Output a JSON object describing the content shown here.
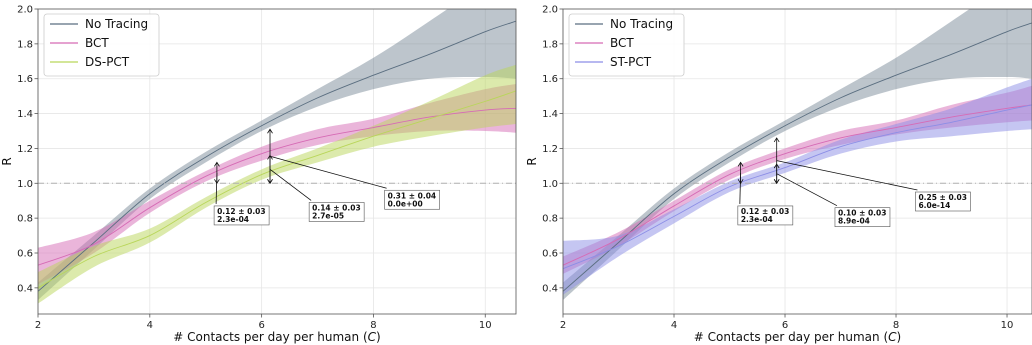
{
  "chart_data": [
    {
      "type": "line",
      "xlabel": "# Contacts per day per human (",
      "xlabel_var": "C",
      "xlabel_end": ")",
      "ylabel": "R",
      "xlim": [
        2,
        10.55
      ],
      "ylim": [
        0.25,
        2.0
      ],
      "xticks": [
        2,
        4,
        6,
        8,
        10
      ],
      "yticks": [
        0.4,
        0.6,
        0.8,
        1.0,
        1.2,
        1.4,
        1.6,
        1.8,
        2.0
      ],
      "xtick_labels": [
        "2",
        "4",
        "6",
        "8",
        "10"
      ],
      "ytick_labels": [
        "0.4",
        "0.6",
        "0.8",
        "1.0",
        "1.2",
        "1.4",
        "1.6",
        "1.8",
        "2.0"
      ],
      "grid": true,
      "reference_line": 1.0,
      "legend_position": "top-left",
      "series": [
        {
          "name": "No Tracing",
          "color": "#5a6e80",
          "x": [
            2,
            3,
            4,
            5,
            6,
            7,
            8,
            9,
            10,
            10.55
          ],
          "y": [
            0.38,
            0.66,
            0.94,
            1.15,
            1.33,
            1.49,
            1.62,
            1.74,
            1.87,
            1.93
          ],
          "lower": [
            0.33,
            0.62,
            0.91,
            1.12,
            1.3,
            1.44,
            1.54,
            1.6,
            1.61,
            1.6
          ],
          "upper": [
            0.43,
            0.7,
            0.97,
            1.18,
            1.36,
            1.54,
            1.72,
            1.93,
            2.15,
            2.3
          ]
        },
        {
          "name": "BCT",
          "color": "#d66bb5",
          "x": [
            2,
            3,
            4,
            5,
            6,
            7,
            8,
            9,
            10,
            10.55
          ],
          "y": [
            0.53,
            0.65,
            0.86,
            1.04,
            1.17,
            1.26,
            1.32,
            1.38,
            1.42,
            1.43
          ],
          "lower": [
            0.42,
            0.6,
            0.83,
            1.01,
            1.13,
            1.22,
            1.27,
            1.3,
            1.3,
            1.29
          ],
          "upper": [
            0.63,
            0.72,
            0.9,
            1.07,
            1.21,
            1.31,
            1.37,
            1.46,
            1.54,
            1.57
          ]
        },
        {
          "name": "DS-PCT",
          "color": "#b9d65a",
          "x": [
            2,
            3,
            4,
            5,
            6,
            7,
            8,
            9,
            10,
            10.55
          ],
          "y": [
            0.4,
            0.58,
            0.7,
            0.89,
            1.05,
            1.16,
            1.27,
            1.37,
            1.47,
            1.53
          ],
          "lower": [
            0.31,
            0.52,
            0.66,
            0.86,
            1.02,
            1.12,
            1.21,
            1.27,
            1.32,
            1.34
          ],
          "upper": [
            0.49,
            0.64,
            0.74,
            0.92,
            1.08,
            1.2,
            1.33,
            1.47,
            1.62,
            1.68
          ]
        }
      ],
      "annotations": [
        {
          "x": 5.2,
          "y_top": 1.12,
          "y_bottom": 1.0,
          "line1": "0.12 ±  0.03",
          "line2": "2.3e-04",
          "box_x": 5.15,
          "box_y": 0.87
        },
        {
          "x": 6.15,
          "y_top": 1.16,
          "y_bottom": 1.0,
          "line1": "0.14 ±  0.03",
          "line2": "2.7e-05",
          "box_x": 6.85,
          "box_y": 0.89
        },
        {
          "x": 6.15,
          "y_top": 1.31,
          "y_bottom": 1.0,
          "line1": "0.31 ±  0.04",
          "line2": "0.0e+00",
          "box_x": 8.2,
          "box_y": 0.96
        }
      ]
    },
    {
      "type": "line",
      "xlabel": "# Contacts per day per human (",
      "xlabel_var": "C",
      "xlabel_end": ")",
      "ylabel": "R",
      "xlim": [
        2,
        10.45
      ],
      "ylim": [
        0.25,
        2.0
      ],
      "xticks": [
        2,
        4,
        6,
        8,
        10
      ],
      "yticks": [
        0.4,
        0.6,
        0.8,
        1.0,
        1.2,
        1.4,
        1.6,
        1.8,
        2.0
      ],
      "xtick_labels": [
        "2",
        "4",
        "6",
        "8",
        "10"
      ],
      "ytick_labels": [
        "0.4",
        "0.6",
        "0.8",
        "1.0",
        "1.2",
        "1.4",
        "1.6",
        "1.8",
        "2.0"
      ],
      "grid": true,
      "reference_line": 1.0,
      "legend_position": "top-left",
      "series": [
        {
          "name": "No Tracing",
          "color": "#5a6e80",
          "x": [
            2,
            3,
            4,
            5,
            6,
            7,
            8,
            9,
            10,
            10.45
          ],
          "y": [
            0.38,
            0.66,
            0.94,
            1.15,
            1.33,
            1.49,
            1.62,
            1.74,
            1.87,
            1.92
          ],
          "lower": [
            0.33,
            0.62,
            0.91,
            1.12,
            1.3,
            1.44,
            1.54,
            1.6,
            1.61,
            1.6
          ],
          "upper": [
            0.43,
            0.7,
            0.97,
            1.18,
            1.36,
            1.54,
            1.72,
            1.93,
            2.15,
            2.28
          ]
        },
        {
          "name": "BCT",
          "color": "#d66bb5",
          "x": [
            2,
            3,
            4,
            5,
            6,
            7,
            8,
            9,
            10,
            10.45
          ],
          "y": [
            0.53,
            0.68,
            0.87,
            1.05,
            1.17,
            1.26,
            1.32,
            1.38,
            1.43,
            1.45
          ],
          "lower": [
            0.48,
            0.64,
            0.84,
            1.02,
            1.14,
            1.22,
            1.28,
            1.32,
            1.35,
            1.36
          ],
          "upper": [
            0.58,
            0.72,
            0.9,
            1.08,
            1.2,
            1.3,
            1.36,
            1.45,
            1.52,
            1.56
          ]
        },
        {
          "name": "ST-PCT",
          "color": "#8c8ee6",
          "x": [
            2,
            3,
            4,
            5,
            6,
            7,
            8,
            9,
            10,
            10.45
          ],
          "y": [
            0.51,
            0.64,
            0.81,
            0.98,
            1.09,
            1.21,
            1.29,
            1.35,
            1.42,
            1.45
          ],
          "lower": [
            0.36,
            0.58,
            0.77,
            0.95,
            1.06,
            1.17,
            1.24,
            1.27,
            1.3,
            1.31
          ],
          "upper": [
            0.67,
            0.7,
            0.85,
            1.01,
            1.12,
            1.25,
            1.34,
            1.43,
            1.55,
            1.6
          ]
        }
      ],
      "annotations": [
        {
          "x": 5.2,
          "y_top": 1.12,
          "y_bottom": 1.0,
          "line1": "0.12 ±  0.03",
          "line2": "2.3e-04",
          "box_x": 5.15,
          "box_y": 0.87
        },
        {
          "x": 5.85,
          "y_top": 1.11,
          "y_bottom": 1.0,
          "line1": "0.10 ±  0.03",
          "line2": "8.9e-04",
          "box_x": 6.9,
          "box_y": 0.86
        },
        {
          "x": 5.85,
          "y_top": 1.26,
          "y_bottom": 1.0,
          "line1": "0.25 ±  0.03",
          "line2": "6.0e-14",
          "box_x": 8.35,
          "box_y": 0.95
        }
      ]
    }
  ]
}
